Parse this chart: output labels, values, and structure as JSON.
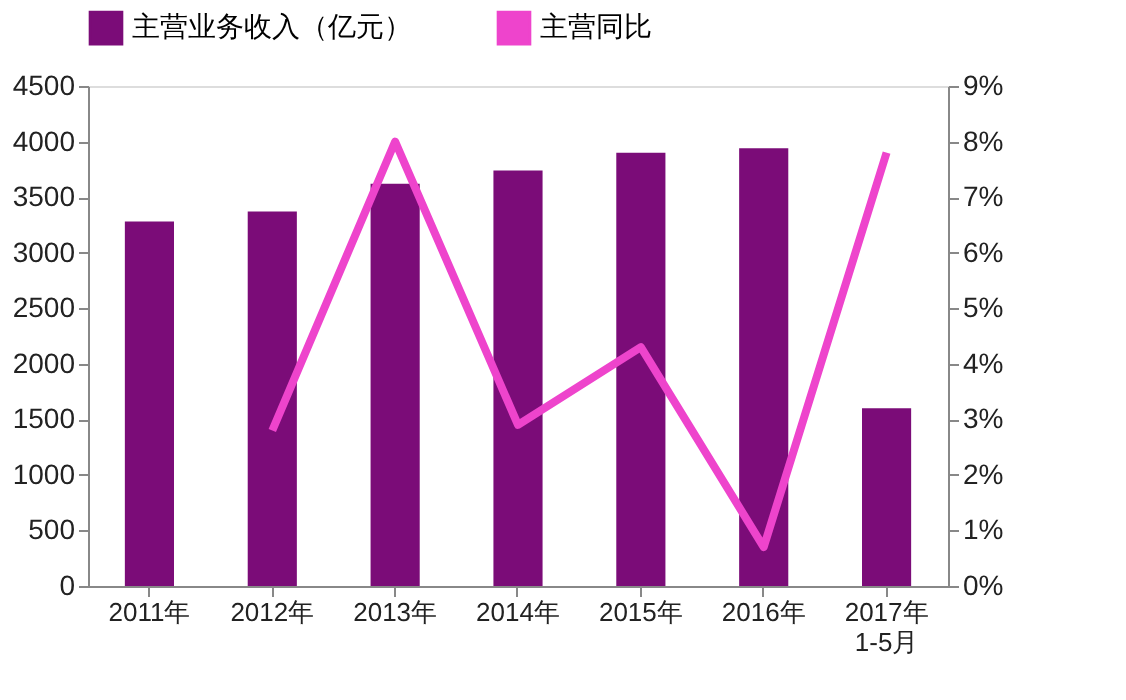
{
  "chart_data": {
    "type": "bar",
    "categories": [
      "2011年",
      "2012年",
      "2013年",
      "2014年",
      "2015年",
      "2016年",
      "2017年\n1-5月"
    ],
    "series": [
      {
        "name": "主营业务收入（亿元）",
        "color": "#7b0c78",
        "values": [
          3280,
          3370,
          3620,
          3740,
          3900,
          3940,
          1600
        ]
      },
      {
        "name": "主营同比",
        "type": "line",
        "axis": "y2",
        "color": "#ee44cc",
        "values": [
          null,
          2.8,
          8.0,
          2.9,
          4.3,
          0.7,
          7.8
        ]
      }
    ],
    "ylim": [
      0,
      4500
    ],
    "yticks": [
      0,
      500,
      1000,
      1500,
      2000,
      2500,
      3000,
      3500,
      4000,
      4500
    ],
    "y2lim": [
      0,
      9
    ],
    "y2ticks": [
      {
        "value": 0,
        "label": "0%"
      },
      {
        "value": 1,
        "label": "1%"
      },
      {
        "value": 2,
        "label": "2%"
      },
      {
        "value": 3,
        "label": "3%"
      },
      {
        "value": 4,
        "label": "4%"
      },
      {
        "value": 5,
        "label": "5%"
      },
      {
        "value": 6,
        "label": "6%"
      },
      {
        "value": 7,
        "label": "7%"
      },
      {
        "value": 8,
        "label": "8%"
      },
      {
        "value": 9,
        "label": "9%"
      }
    ],
    "grid": false,
    "legend": "top",
    "marker": "none",
    "line_style": "solid"
  }
}
